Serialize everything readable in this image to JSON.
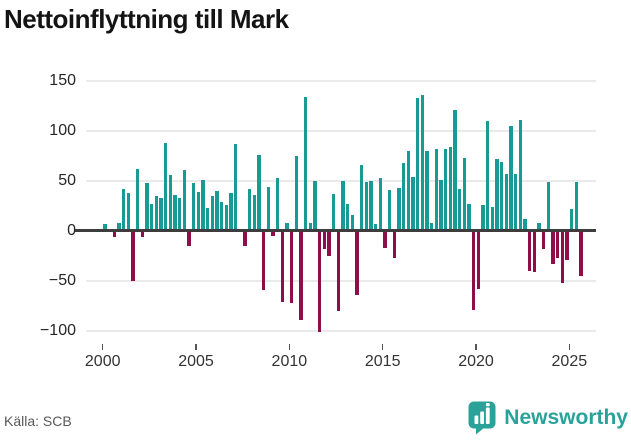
{
  "header": {
    "title": "Nettoinflyttning till Mark"
  },
  "footer": {
    "source": "Källa: SCB",
    "brand": "Newsworthy"
  },
  "chart_data": {
    "type": "bar",
    "title": "Nettoinflyttning till Mark",
    "xlabel": "",
    "ylabel": "",
    "ylim": [
      -115,
      155
    ],
    "grid": "horizontal",
    "legend": "none",
    "y_ticks": [
      150,
      100,
      50,
      0,
      -50,
      -100
    ],
    "y_tick_labels": [
      "150",
      "100",
      "50",
      "0",
      "−50",
      "−100"
    ],
    "x_ticks": [
      2000,
      2005,
      2010,
      2015,
      2020,
      2025
    ],
    "x_tick_labels": [
      "2000",
      "2005",
      "2010",
      "2015",
      "2020",
      "2025"
    ],
    "colors": {
      "positive": "#179b94",
      "negative": "#900d49",
      "zero_line": "#3d3d3d",
      "gridline": "#eaeaea",
      "brand": "#2aa29a"
    },
    "period_start": "2000Q1",
    "period_end": "2025Q3",
    "periods": [
      "2000Q1",
      "2000Q2",
      "2000Q3",
      "2000Q4",
      "2001Q1",
      "2001Q2",
      "2001Q3",
      "2001Q4",
      "2002Q1",
      "2002Q2",
      "2002Q3",
      "2002Q4",
      "2003Q1",
      "2003Q2",
      "2003Q3",
      "2003Q4",
      "2004Q1",
      "2004Q2",
      "2004Q3",
      "2004Q4",
      "2005Q1",
      "2005Q2",
      "2005Q3",
      "2005Q4",
      "2006Q1",
      "2006Q2",
      "2006Q3",
      "2006Q4",
      "2007Q1",
      "2007Q2",
      "2007Q3",
      "2007Q4",
      "2008Q1",
      "2008Q2",
      "2008Q3",
      "2008Q4",
      "2009Q1",
      "2009Q2",
      "2009Q3",
      "2009Q4",
      "2010Q1",
      "2010Q2",
      "2010Q3",
      "2010Q4",
      "2011Q1",
      "2011Q2",
      "2011Q3",
      "2011Q4",
      "2012Q1",
      "2012Q2",
      "2012Q3",
      "2012Q4",
      "2013Q1",
      "2013Q2",
      "2013Q3",
      "2013Q4",
      "2014Q1",
      "2014Q2",
      "2014Q3",
      "2014Q4",
      "2015Q1",
      "2015Q2",
      "2015Q3",
      "2015Q4",
      "2016Q1",
      "2016Q2",
      "2016Q3",
      "2016Q4",
      "2017Q1",
      "2017Q2",
      "2017Q3",
      "2017Q4",
      "2018Q1",
      "2018Q2",
      "2018Q3",
      "2018Q4",
      "2019Q1",
      "2019Q2",
      "2019Q3",
      "2019Q4",
      "2020Q1",
      "2020Q2",
      "2020Q3",
      "2020Q4",
      "2021Q1",
      "2021Q2",
      "2021Q3",
      "2021Q4",
      "2022Q1",
      "2022Q2",
      "2022Q3",
      "2022Q4",
      "2023Q1",
      "2023Q2",
      "2023Q3",
      "2023Q4",
      "2024Q1",
      "2024Q2",
      "2024Q3",
      "2024Q4",
      "2025Q1",
      "2025Q2",
      "2025Q3"
    ],
    "values": [
      7,
      0,
      -6,
      8,
      42,
      38,
      -50,
      62,
      -6,
      48,
      27,
      35,
      33,
      88,
      56,
      36,
      33,
      61,
      -15,
      48,
      39,
      51,
      23,
      35,
      40,
      29,
      26,
      38,
      87,
      0,
      -15,
      42,
      36,
      76,
      -59,
      44,
      -5,
      53,
      -71,
      8,
      -72,
      75,
      -89,
      134,
      8,
      50,
      -101,
      -18,
      -25,
      37,
      -80,
      50,
      27,
      16,
      -64,
      66,
      49,
      50,
      7,
      53,
      -17,
      41,
      -27,
      43,
      68,
      80,
      54,
      133,
      136,
      80,
      8,
      82,
      51,
      82,
      84,
      121,
      42,
      73,
      27,
      -79,
      -58,
      26,
      110,
      24,
      72,
      69,
      57,
      105,
      57,
      111,
      12,
      -40,
      -41,
      8,
      -18,
      49,
      -33,
      -27,
      -52,
      -29,
      22,
      49,
      -45
    ]
  }
}
